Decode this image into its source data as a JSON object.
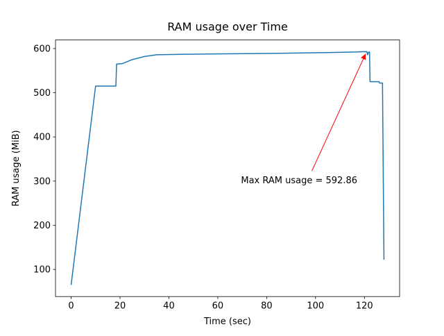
{
  "figure": {
    "background": "#ffffff"
  },
  "chart_data": {
    "type": "line",
    "title": "RAM usage over Time",
    "xlabel": "Time (sec)",
    "ylabel": "RAM usage (MiB)",
    "line_color": "#1f77b4",
    "axis_color": "#000000",
    "grid": false,
    "xlim": [
      -6.4,
      134.4
    ],
    "ylim": [
      38.6,
      619.4
    ],
    "xticks": [
      0,
      20,
      40,
      60,
      80,
      100,
      120
    ],
    "yticks": [
      100,
      200,
      300,
      400,
      500,
      600
    ],
    "x": [
      0,
      10,
      18.3,
      18.6,
      21,
      25,
      30,
      35,
      45,
      60,
      80,
      100,
      110,
      117,
      119,
      121,
      121.3,
      121.7,
      122.1,
      122.3,
      126,
      126.2,
      127.4,
      128
    ],
    "y": [
      65,
      515,
      515,
      565,
      566,
      575,
      582,
      586,
      587,
      588,
      589,
      590.5,
      591.5,
      592.3,
      592.86,
      593,
      586,
      592,
      592,
      525,
      525,
      522,
      522,
      122
    ],
    "annotation": {
      "text": "Max RAM usage = 592.86",
      "color": "#ff0000",
      "xy": [
        120.5,
        588
      ],
      "arrow_start": [
        98.5,
        323
      ],
      "xytext": [
        69.5,
        301
      ]
    }
  }
}
